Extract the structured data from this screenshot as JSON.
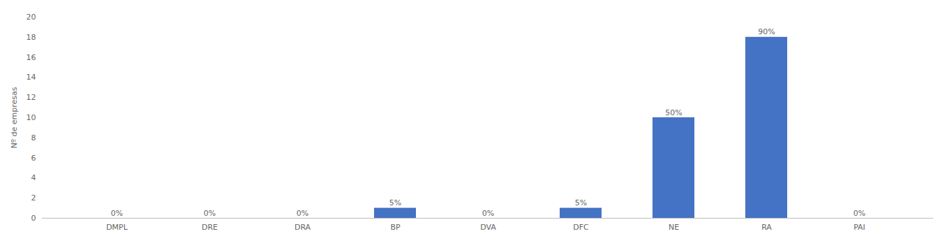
{
  "chart_data": {
    "type": "bar",
    "categories": [
      "DMPL",
      "DRE",
      "DRA",
      "BP",
      "DVA",
      "DFC",
      "NE",
      "RA",
      "PAI"
    ],
    "values": [
      0,
      0,
      0,
      1,
      0,
      1,
      10,
      18,
      0
    ],
    "percentages": [
      "0%",
      "0%",
      "0%",
      "5%",
      "0%",
      "5%",
      "50%",
      "90%",
      "0%"
    ],
    "color": "#4472C4",
    "ylabel": "Nº de empresas",
    "ylim": [
      0,
      20
    ],
    "yticks": [
      0,
      2,
      4,
      6,
      8,
      10,
      12,
      14,
      16,
      18,
      20
    ],
    "grid": false
  }
}
